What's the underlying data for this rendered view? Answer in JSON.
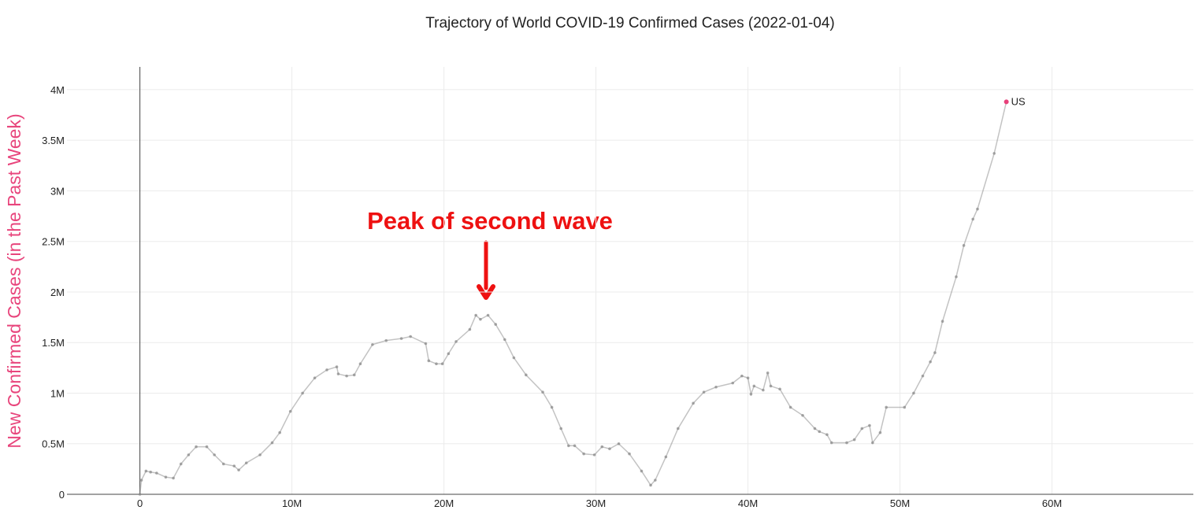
{
  "chart_data": {
    "type": "line",
    "title": "Trajectory of World COVID-19 Confirmed Cases (2022-01-04)",
    "y_label": "New Confirmed Cases (in the Past Week)",
    "annotation": "Peak of second wave",
    "xlim": [
      -4800000,
      69300000
    ],
    "ylim": [
      0,
      4225000
    ],
    "xticks": [
      0,
      {
        "value": 10000000,
        "label": "10M"
      },
      {
        "value": 20000000,
        "label": "20M"
      },
      {
        "value": 30000000,
        "label": "30M"
      },
      {
        "value": 40000000,
        "label": "40M"
      },
      {
        "value": 50000000,
        "label": "50M"
      },
      {
        "value": 60000000,
        "label": "60M"
      }
    ],
    "yticks": [
      0,
      {
        "value": 500000,
        "label": "0.5M"
      },
      {
        "value": 1000000,
        "label": "1M"
      },
      {
        "value": 1500000,
        "label": "1.5M"
      },
      {
        "value": 2000000,
        "label": "2M"
      },
      {
        "value": 2500000,
        "label": "2.5M"
      },
      {
        "value": 3000000,
        "label": "3M"
      },
      {
        "value": 3500000,
        "label": "3.5M"
      },
      {
        "value": 4000000,
        "label": "4M"
      }
    ],
    "grid": true,
    "y_label_color": "#e8457c",
    "highlight_color": "#e8407a",
    "series": [
      {
        "name": "US",
        "color": "#888888",
        "x": [
          0,
          100000,
          400000,
          700000,
          1100000,
          1700000,
          2200000,
          2700000,
          3200000,
          3700000,
          4400000,
          4900000,
          5500000,
          6200000,
          6500000,
          7000000,
          7900000,
          8700000,
          9200000,
          9900000,
          10700000,
          11500000,
          12300000,
          12950000,
          13050000,
          13600000,
          14100000,
          14500000,
          15300000,
          16200000,
          17200000,
          17800000,
          18800000,
          19000000,
          19500000,
          19900000,
          20300000,
          20800000,
          21700000,
          22100000,
          22400000,
          22900000,
          23400000,
          24000000,
          24600000,
          25400000,
          26500000,
          27100000,
          27700000,
          28200000,
          28600000,
          29200000,
          29900000,
          30400000,
          30900000,
          31500000,
          32200000,
          33000000,
          33600000,
          33900000,
          34600000,
          35400000,
          36400000,
          37100000,
          37900000,
          39000000,
          39600000,
          40000000,
          40200000,
          40400000,
          41000000,
          41300000,
          41500000,
          42100000,
          42800000,
          43600000,
          44400000,
          44700000,
          45200000,
          45500000,
          46500000,
          47000000,
          47500000,
          48000000,
          48200000,
          48700000,
          49100000,
          50300000,
          50900000,
          51500000,
          52000000,
          52300000,
          52800000,
          53700000,
          54200000,
          54800000,
          55100000,
          56200000,
          57000000
        ],
        "values": [
          0,
          140000,
          230000,
          220000,
          210000,
          170000,
          160000,
          300000,
          390000,
          470000,
          470000,
          390000,
          300000,
          280000,
          240000,
          310000,
          390000,
          510000,
          610000,
          820000,
          1000000,
          1150000,
          1230000,
          1260000,
          1190000,
          1170000,
          1180000,
          1290000,
          1480000,
          1520000,
          1540000,
          1560000,
          1490000,
          1320000,
          1290000,
          1290000,
          1390000,
          1510000,
          1630000,
          1770000,
          1730000,
          1770000,
          1680000,
          1530000,
          1350000,
          1180000,
          1010000,
          860000,
          650000,
          480000,
          480000,
          400000,
          390000,
          470000,
          450000,
          500000,
          400000,
          230000,
          90000,
          140000,
          370000,
          650000,
          900000,
          1010000,
          1060000,
          1100000,
          1170000,
          1150000,
          990000,
          1070000,
          1030000,
          1200000,
          1070000,
          1040000,
          860000,
          780000,
          650000,
          620000,
          590000,
          510000,
          510000,
          540000,
          650000,
          680000,
          510000,
          610000,
          860000,
          860000,
          1000000,
          1170000,
          1310000,
          1400000,
          1710000,
          2150000,
          2460000,
          2720000,
          2820000,
          3370000,
          3880000
        ]
      }
    ]
  }
}
